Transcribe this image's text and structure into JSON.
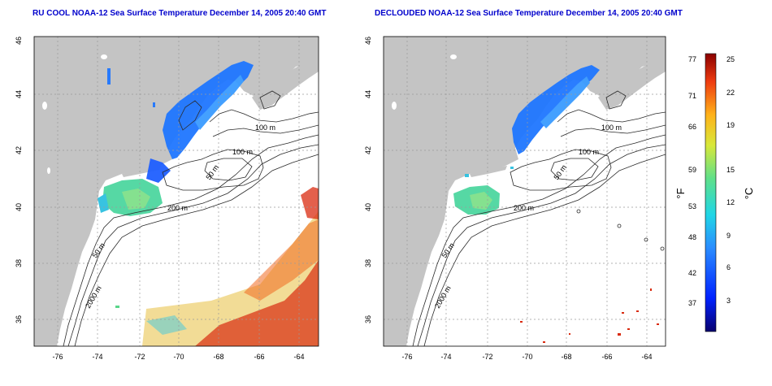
{
  "colors": {
    "land": "#c4c4c4",
    "ocean": "#ffffff",
    "contour": "#2a2a2a",
    "grid": "#9a9a9a",
    "title": "#0000cc",
    "cold": "#1f77ff",
    "mid": "#4dd6a0",
    "warm": "#d92b10"
  },
  "panels": [
    {
      "title": "RU COOL NOAA-12 Sea Surface Temperature December 14, 2005 20:40 GMT",
      "contour_labels": [
        "100 m",
        "100 m",
        "50 m",
        "200 m",
        "50 m",
        "2000 m"
      ]
    },
    {
      "title": "DECLOUDED NOAA-12 Sea Surface Temperature December 14, 2005 20:40 GMT",
      "contour_labels": [
        "100 m",
        "100 m",
        "50 m",
        "200 m",
        "50 m",
        "2000 m"
      ]
    }
  ],
  "axes": {
    "lat_ticks": [
      "46",
      "44",
      "42",
      "40",
      "38",
      "36"
    ],
    "lon_ticks": [
      "-76",
      "-74",
      "-72",
      "-70",
      "-68",
      "-66",
      "-64"
    ]
  },
  "colorbar": {
    "f_label": "°F",
    "c_label": "°C",
    "f_ticks": [
      "77",
      "71",
      "66",
      "59",
      "53",
      "48",
      "42",
      "37"
    ],
    "c_ticks": [
      "25",
      "22",
      "19",
      "15",
      "12",
      "9",
      "6",
      "3"
    ]
  }
}
